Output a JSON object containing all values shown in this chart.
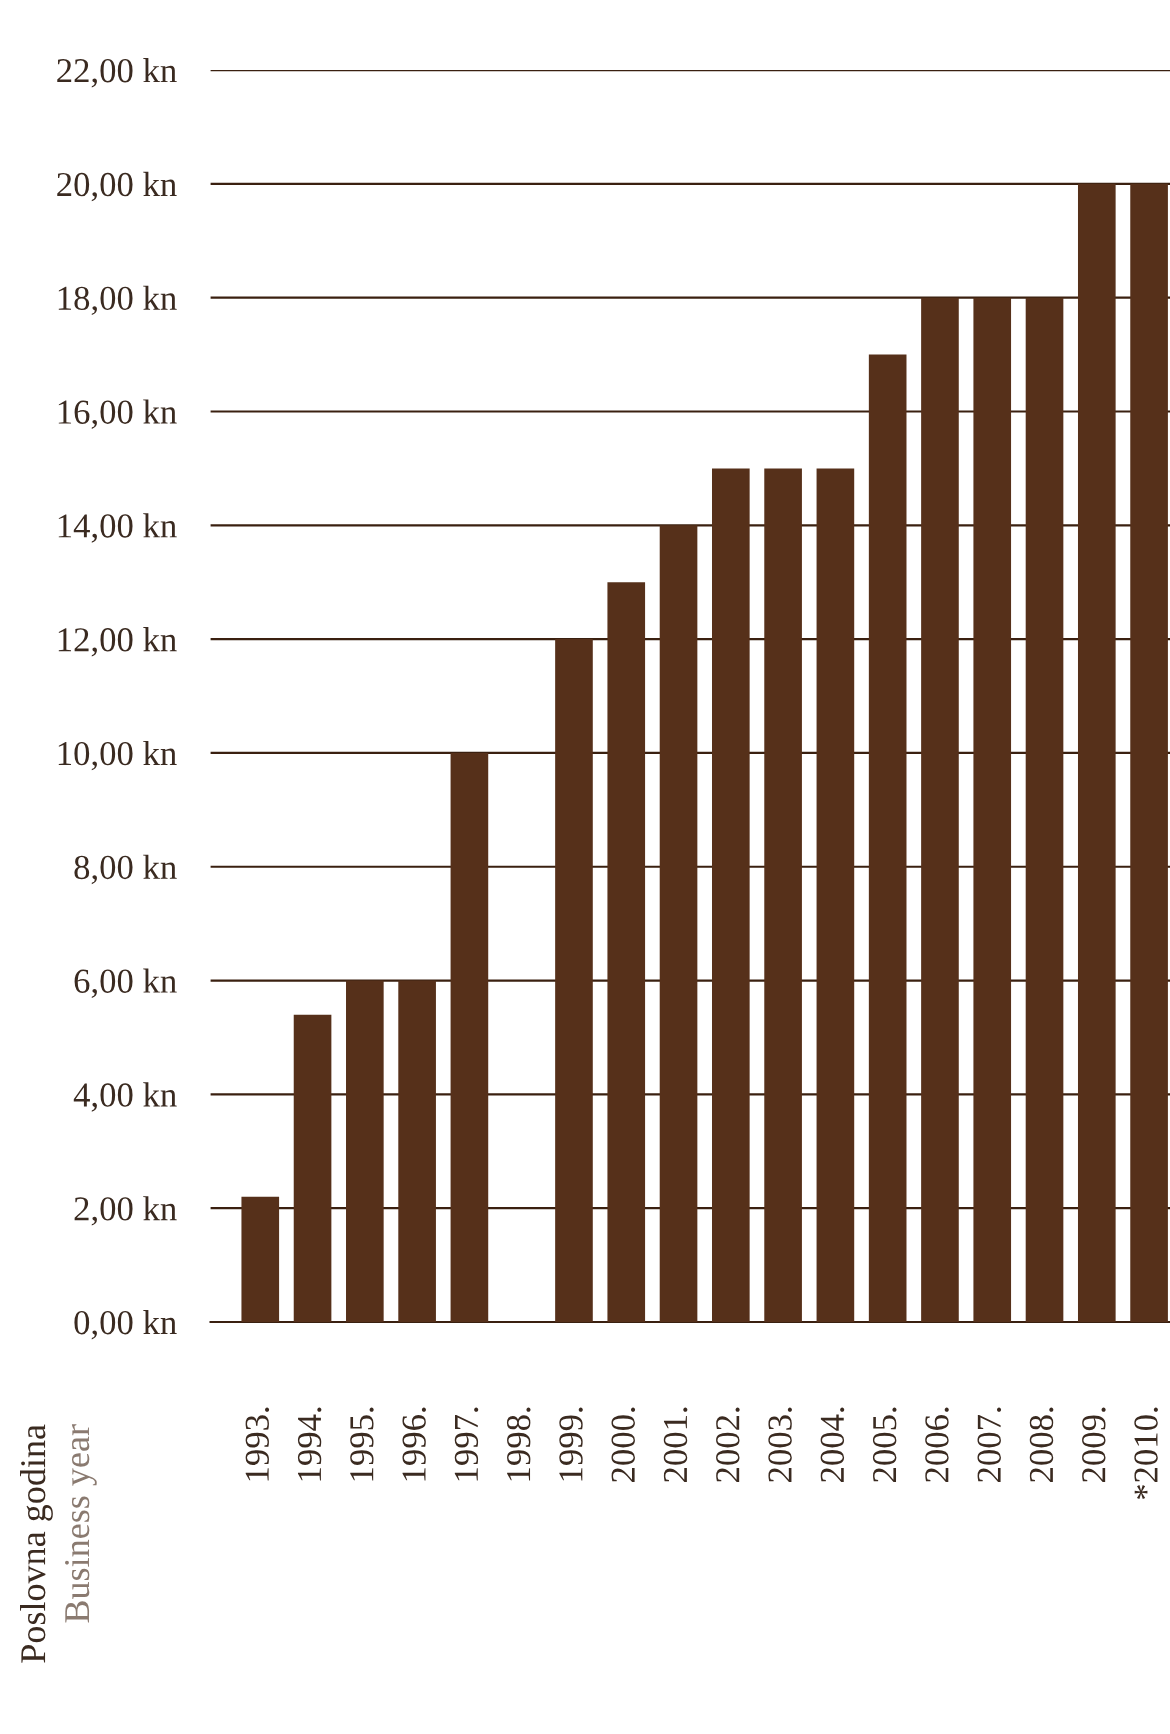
{
  "chart_data": {
    "type": "bar",
    "categories": [
      "1993.",
      "1994.",
      "1995.",
      "1996.",
      "1997.",
      "1998.",
      "1999.",
      "2000.",
      "2001.",
      "2002.",
      "2003.",
      "2004.",
      "2005.",
      "2006.",
      "2007.",
      "2008.",
      "2009.",
      "*2010."
    ],
    "values": [
      2.2,
      5.4,
      6,
      6,
      10,
      0,
      12,
      13,
      14,
      15,
      15,
      15,
      17,
      18,
      18,
      18,
      20,
      20
    ],
    "color": "#56301a",
    "annotations": [
      "Poslovna godina",
      "Business year"
    ],
    "ylim": [
      0,
      22
    ],
    "yticks": [
      {
        "value": 0,
        "label": "0,00 kn"
      },
      {
        "value": 2,
        "label": "2,00 kn"
      },
      {
        "value": 4,
        "label": "4,00 kn"
      },
      {
        "value": 6,
        "label": "6,00 kn"
      },
      {
        "value": 8,
        "label": "8,00 kn"
      },
      {
        "value": 10,
        "label": "10,00 kn"
      },
      {
        "value": 12,
        "label": "12,00 kn"
      },
      {
        "value": 14,
        "label": "14,00 kn"
      },
      {
        "value": 16,
        "label": "16,00 kn"
      },
      {
        "value": 18,
        "label": "18,00 kn"
      },
      {
        "value": 20,
        "label": "20,00 kn"
      },
      {
        "value": 22,
        "label": "22,00 kn"
      }
    ],
    "grid": "y"
  }
}
